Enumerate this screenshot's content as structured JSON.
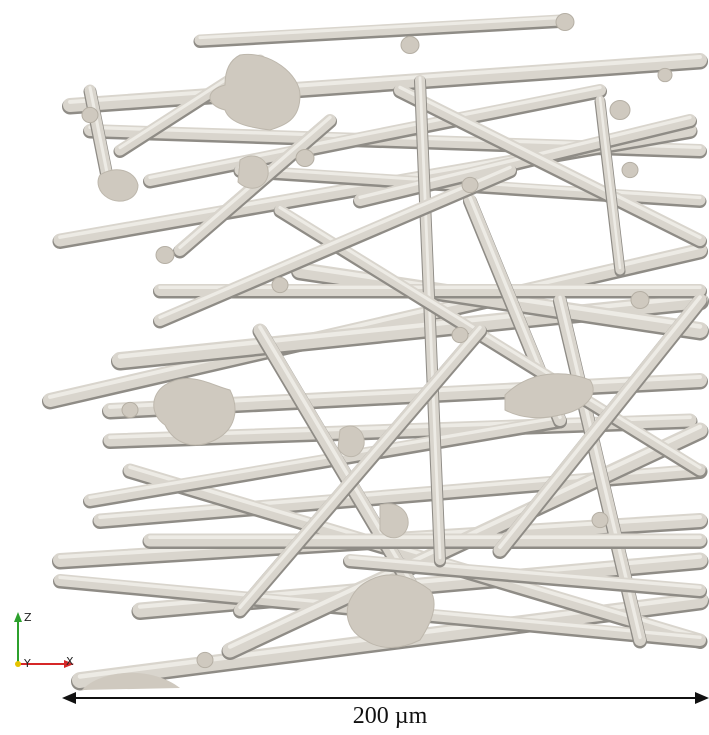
{
  "image": {
    "kind": "3D render of fibrous microstructure",
    "fiber_color": "#d9d5cd",
    "fiber_shade": "#8f8c86",
    "cap_color": "#cfc9bf",
    "background": "#ffffff"
  },
  "scale_bar": {
    "label": "200 µm"
  },
  "axes": {
    "z": {
      "label": "Z",
      "color": "#2ca02c"
    },
    "y": {
      "label": "Y",
      "color": "#e6c300"
    },
    "x": {
      "label": "X",
      "color": "#d62728"
    }
  }
}
